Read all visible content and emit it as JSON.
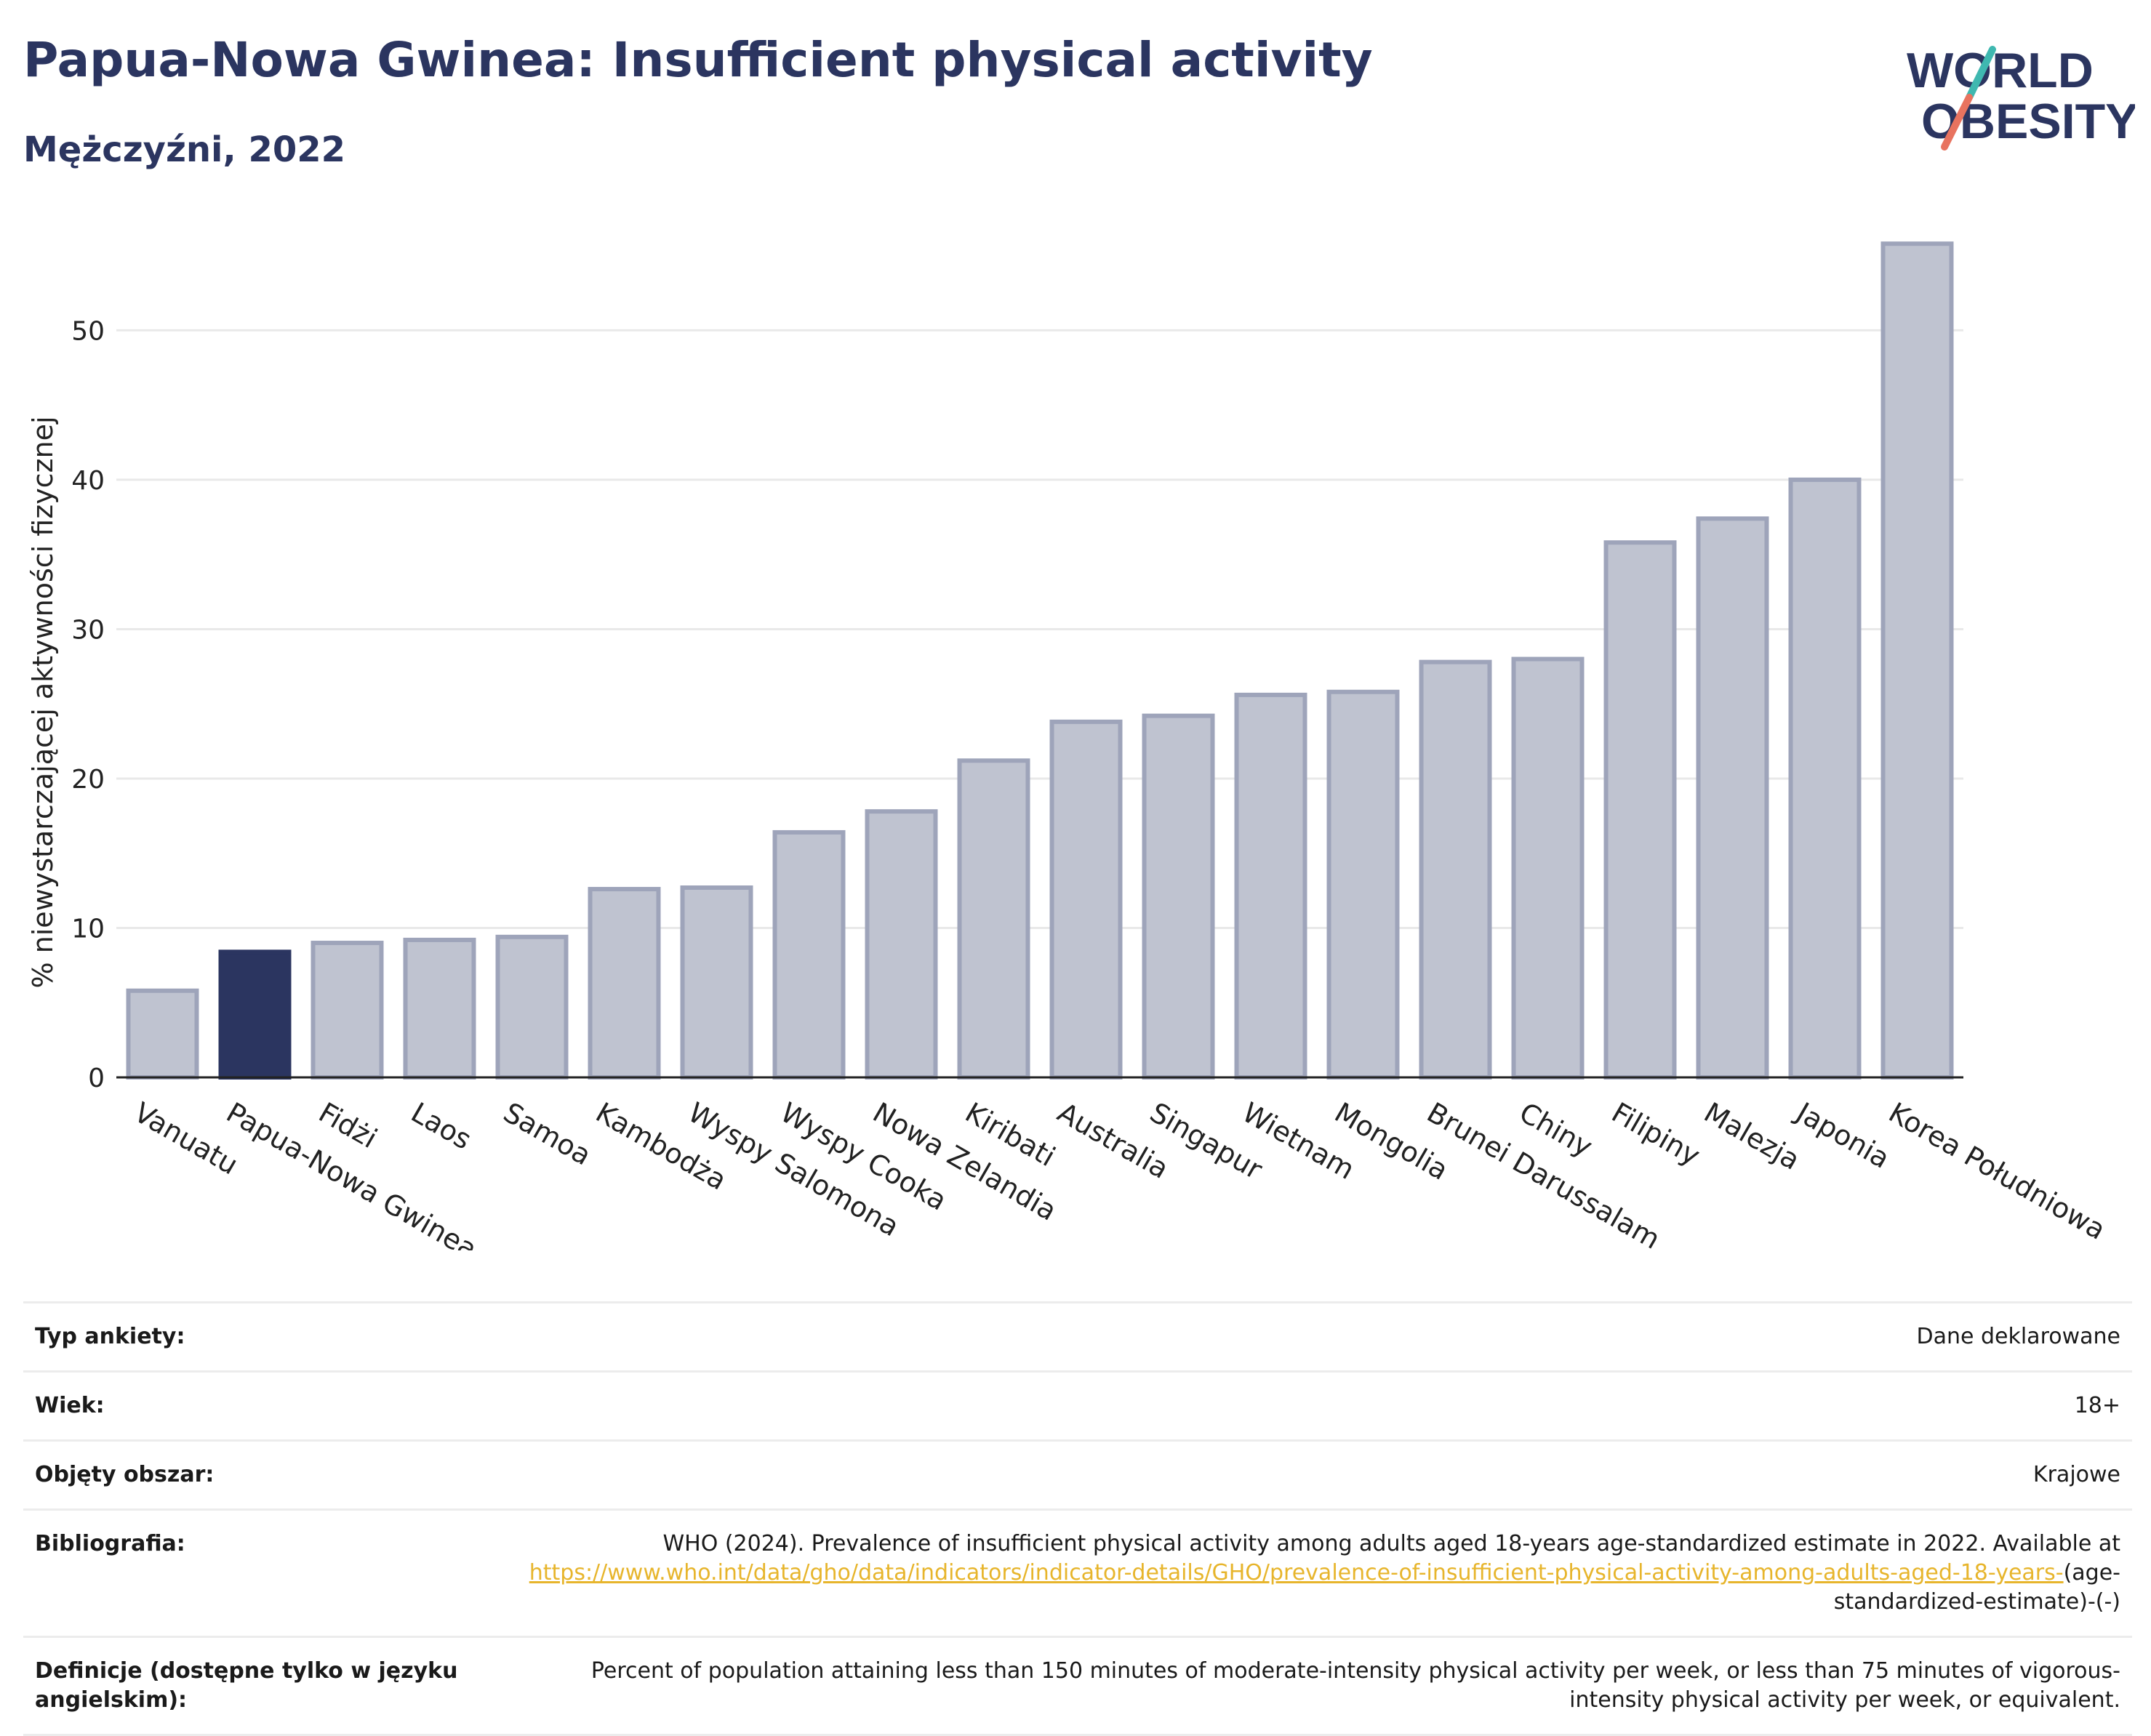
{
  "header": {
    "title": "Papua-Nowa Gwinea: Insufficient physical activity",
    "subtitle": "Mężczyźni, 2022",
    "logo_line1": "WORLD",
    "logo_line2": "OBESITY"
  },
  "colors": {
    "bar": "#bfc3d0",
    "bar_border": "#9ea4ba",
    "highlight": "#2b3560",
    "grid": "#e9e9e9",
    "logo_text": "#2b3560",
    "logo_teal": "#3fb8b0",
    "logo_coral": "#e8735f",
    "link": "#e7b52c"
  },
  "chart_data": {
    "type": "bar",
    "title": "Papua-Nowa Gwinea: Insufficient physical activity",
    "subtitle": "Mężczyźni, 2022",
    "xlabel": "",
    "ylabel": "% niewystarczającej aktywności fizycznej",
    "ylim": [
      0,
      58
    ],
    "yticks": [
      0,
      10,
      20,
      30,
      40,
      50
    ],
    "grid": true,
    "highlight": "Papua-Nowa Gwinea",
    "categories": [
      "Vanuatu",
      "Papua-Nowa Gwinea",
      "Fidżi",
      "Laos",
      "Samoa",
      "Kambodża",
      "Wyspy Salomona",
      "Wyspy Cooka",
      "Nowa Zelandia",
      "Kiribati",
      "Australia",
      "Singapur",
      "Wietnam",
      "Mongolia",
      "Brunei Darussalam",
      "Chiny",
      "Filipiny",
      "Malezja",
      "Japonia",
      "Korea Południowa"
    ],
    "values": [
      5.8,
      8.4,
      9.0,
      9.2,
      9.4,
      12.6,
      12.7,
      16.4,
      17.8,
      21.2,
      23.8,
      24.2,
      25.6,
      25.8,
      27.8,
      28.0,
      35.8,
      37.4,
      40.0,
      55.8
    ]
  },
  "meta": [
    {
      "label": "Typ ankiety:",
      "value": "Dane deklarowane"
    },
    {
      "label": "Wiek:",
      "value": "18+"
    },
    {
      "label": "Objęty obszar:",
      "value": "Krajowe"
    }
  ],
  "bibliography": {
    "label": "Bibliografia:",
    "text": "WHO (2024). Prevalence of insufficient physical activity among adults aged 18-years age-standardized estimate in 2022. Available at",
    "link": "https://www.who.int/data/gho/data/indicators/indicator-details/GHO/prevalence-of-insufficient-physical-activity-among-adults-aged-18-years-",
    "suffix": "(age-standardized-estimate)-(-)"
  },
  "definition": {
    "label": "Definicje (dostępne tylko w języku angielskim):",
    "text": "Percent of population attaining less than 150 minutes of moderate-intensity physical activity per week, or less than 75 minutes of vigorous-intensity physical activity per week, or equivalent."
  }
}
